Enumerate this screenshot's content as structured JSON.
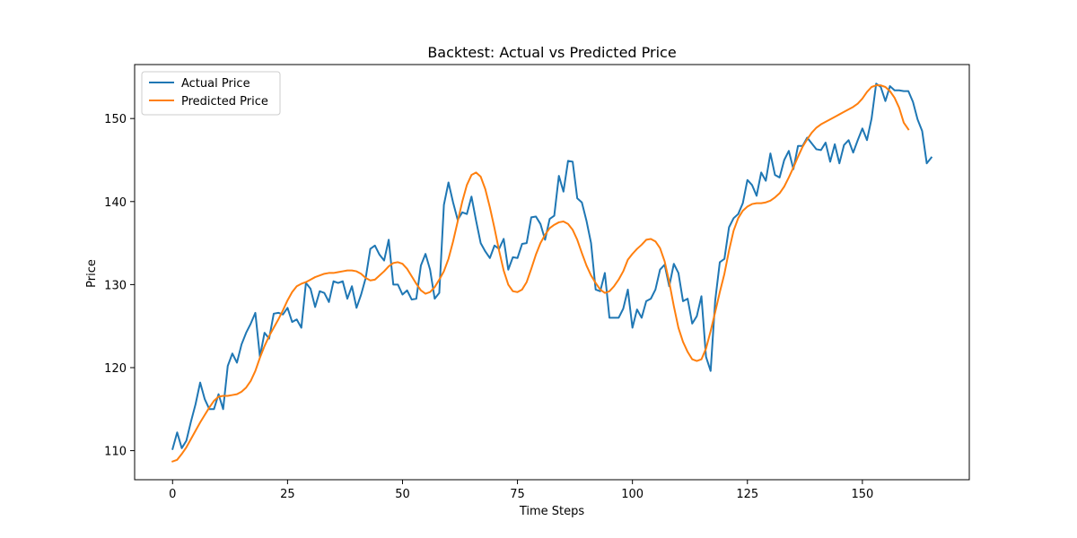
{
  "chart_data": {
    "type": "line",
    "title": "Backtest: Actual vs Predicted Price",
    "xlabel": "Time Steps",
    "ylabel": "Price",
    "xlim": [
      -8.25,
      173.25
    ],
    "ylim": [
      106.5,
      156.5
    ],
    "xticks": [
      0,
      25,
      50,
      75,
      100,
      125,
      150
    ],
    "yticks": [
      110,
      120,
      130,
      140,
      150
    ],
    "grid": false,
    "legend_position": "upper left",
    "series": [
      {
        "name": "Actual Price",
        "color": "#1f77b4",
        "values": [
          110.2,
          112.2,
          110.3,
          111.2,
          113.5,
          115.6,
          118.2,
          116.2,
          115.0,
          115.0,
          116.8,
          115.0,
          120.2,
          121.7,
          120.6,
          122.8,
          124.2,
          125.3,
          126.6,
          121.3,
          124.2,
          123.5,
          126.5,
          126.6,
          126.4,
          127.2,
          125.5,
          125.8,
          124.8,
          130.2,
          129.5,
          127.3,
          129.2,
          129.0,
          127.9,
          130.4,
          130.2,
          130.4,
          128.3,
          129.8,
          127.2,
          128.8,
          130.8,
          134.3,
          134.7,
          133.6,
          132.9,
          135.4,
          130.0,
          130.0,
          128.8,
          129.3,
          128.2,
          128.3,
          132.3,
          133.7,
          131.8,
          128.3,
          129.0,
          139.6,
          142.3,
          139.9,
          137.8,
          138.7,
          138.5,
          140.6,
          137.7,
          135.0,
          134.0,
          133.2,
          134.7,
          134.3,
          135.5,
          131.8,
          133.3,
          133.2,
          134.9,
          135.0,
          138.1,
          138.2,
          137.3,
          135.4,
          137.9,
          138.3,
          143.1,
          141.2,
          144.9,
          144.8,
          140.4,
          139.9,
          137.7,
          135.0,
          129.4,
          129.2,
          131.4,
          126.0,
          126.0,
          126.0,
          127.1,
          129.4,
          124.8,
          127.0,
          126.0,
          128.0,
          128.3,
          129.4,
          131.8,
          132.4,
          129.8,
          132.5,
          131.4,
          128.0,
          128.3,
          125.3,
          126.2,
          128.6,
          121.3,
          119.6,
          128.1,
          132.7,
          133.1,
          136.9,
          138.0,
          138.5,
          139.8,
          142.6,
          142.0,
          140.7,
          143.5,
          142.5,
          145.8,
          143.2,
          142.9,
          145.0,
          146.1,
          143.9,
          146.7,
          146.7,
          147.7,
          147.0,
          146.3,
          146.2,
          147.1,
          144.8,
          146.9,
          144.6,
          146.8,
          147.4,
          145.9,
          147.4,
          148.8,
          147.4,
          150.0,
          154.2,
          153.8,
          152.1,
          153.9,
          153.4,
          153.4,
          153.3,
          153.3,
          152.0,
          149.9,
          148.5,
          144.6,
          145.3
        ]
      },
      {
        "name": "Predicted Price",
        "color": "#ff7f0e",
        "values": [
          108.7,
          108.9,
          109.6,
          110.4,
          111.4,
          112.4,
          113.4,
          114.3,
          115.2,
          116.0,
          116.5,
          116.6,
          116.6,
          116.7,
          116.8,
          117.1,
          117.6,
          118.4,
          119.6,
          121.2,
          122.6,
          123.8,
          124.8,
          125.8,
          126.9,
          128.1,
          129.1,
          129.8,
          130.1,
          130.3,
          130.6,
          130.9,
          131.1,
          131.3,
          131.4,
          131.4,
          131.5,
          131.6,
          131.7,
          131.7,
          131.6,
          131.3,
          130.8,
          130.5,
          130.6,
          131.1,
          131.6,
          132.2,
          132.6,
          132.7,
          132.5,
          131.9,
          131.0,
          130.1,
          129.3,
          128.9,
          129.1,
          129.7,
          130.6,
          131.6,
          133.1,
          135.2,
          137.6,
          140.0,
          142.0,
          143.2,
          143.5,
          143.0,
          141.5,
          139.3,
          136.8,
          134.1,
          131.7,
          130.0,
          129.2,
          129.1,
          129.4,
          130.3,
          131.9,
          133.6,
          135.0,
          136.0,
          136.8,
          137.2,
          137.5,
          137.6,
          137.3,
          136.6,
          135.4,
          133.8,
          132.3,
          131.1,
          130.2,
          129.4,
          129.0,
          129.2,
          129.8,
          130.6,
          131.6,
          133.0,
          133.7,
          134.3,
          134.8,
          135.4,
          135.5,
          135.2,
          134.4,
          132.8,
          130.3,
          127.4,
          124.8,
          123.1,
          121.9,
          121.0,
          120.8,
          121.0,
          122.3,
          124.4,
          126.7,
          129.1,
          131.3,
          134.1,
          136.5,
          138.0,
          138.9,
          139.4,
          139.7,
          139.8,
          139.8,
          139.9,
          140.1,
          140.5,
          141.0,
          141.8,
          142.9,
          144.1,
          145.4,
          146.6,
          147.5,
          148.3,
          148.9,
          149.3,
          149.6,
          149.9,
          150.2,
          150.5,
          150.8,
          151.1,
          151.4,
          151.8,
          152.4,
          153.2,
          153.8,
          154.0,
          154.0,
          153.8,
          153.3,
          152.5,
          151.3,
          149.5,
          148.7
        ]
      }
    ]
  }
}
